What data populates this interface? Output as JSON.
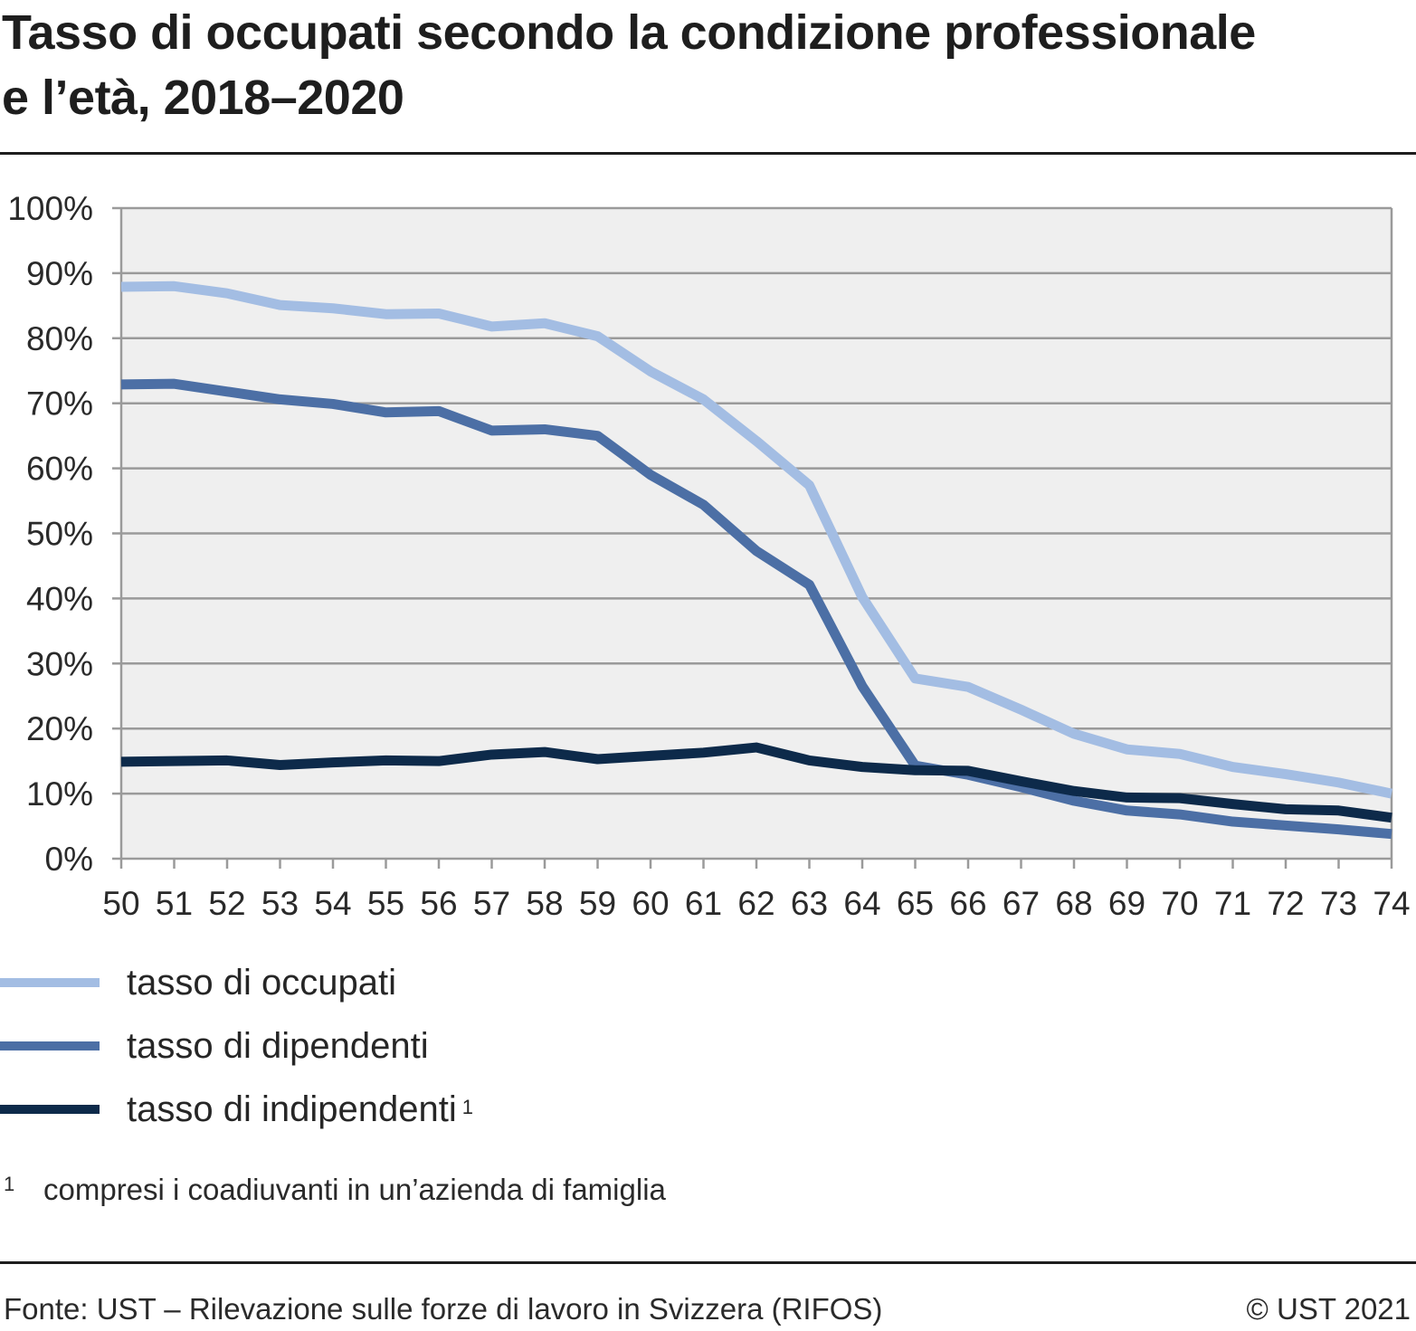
{
  "header": {
    "title_line1": "Tasso di occupati secondo la condizione professionale",
    "title_line2": "e l’età, 2018–2020"
  },
  "chart_data": {
    "type": "line",
    "title": "Tasso di occupati secondo la condizione professionale e l’età, 2018–2020",
    "xlabel": "",
    "ylabel": "",
    "categories": [
      "50",
      "51",
      "52",
      "53",
      "54",
      "55",
      "56",
      "57",
      "58",
      "59",
      "60",
      "61",
      "62",
      "63",
      "64",
      "65",
      "66",
      "67",
      "68",
      "69",
      "70",
      "71",
      "72",
      "73",
      "74"
    ],
    "y_ticks": [
      "0%",
      "10%",
      "20%",
      "30%",
      "40%",
      "50%",
      "60%",
      "70%",
      "80%",
      "90%",
      "100%"
    ],
    "ylim": [
      0,
      100
    ],
    "grid": true,
    "legend_position": "bottom",
    "series": [
      {
        "name": "tasso di occupati",
        "color": "#a3bde3",
        "values": [
          87.9,
          88.0,
          86.9,
          85.1,
          84.6,
          83.7,
          83.8,
          81.8,
          82.3,
          80.3,
          74.9,
          70.6,
          64.2,
          57.4,
          40.2,
          27.7,
          26.4,
          22.9,
          19.2,
          16.8,
          16.1,
          14.1,
          13.0,
          11.7,
          10.0
        ]
      },
      {
        "name": "tasso di dipendenti",
        "color": "#4c6fa5",
        "values": [
          72.9,
          73.0,
          71.8,
          70.6,
          69.9,
          68.6,
          68.8,
          65.8,
          66.0,
          65.0,
          59.0,
          54.4,
          47.3,
          42.1,
          26.5,
          14.3,
          12.9,
          11.0,
          8.9,
          7.4,
          6.8,
          5.7,
          5.1,
          4.5,
          3.8
        ]
      },
      {
        "name": "tasso di indipendenti",
        "color": "#0d2a4a",
        "values": [
          14.9,
          15.0,
          15.1,
          14.4,
          14.8,
          15.1,
          15.0,
          16.0,
          16.4,
          15.3,
          15.8,
          16.3,
          17.1,
          15.1,
          14.1,
          13.6,
          13.5,
          11.9,
          10.4,
          9.4,
          9.3,
          8.4,
          7.6,
          7.4,
          6.3
        ]
      }
    ]
  },
  "legend": [
    {
      "label": "tasso di occupati",
      "sup": "",
      "color": "#a3bde3"
    },
    {
      "label": "tasso di dipendenti",
      "sup": "",
      "color": "#4c6fa5"
    },
    {
      "label": "tasso di indipendenti",
      "sup": "1",
      "color": "#0d2a4a"
    }
  ],
  "footnote": {
    "mark": "1",
    "text": "compresi i coadiuvanti in un’azienda di famiglia"
  },
  "footer": {
    "source": "Fonte: UST – Rilevazione sulle forze di lavoro in Svizzera (RIFOS)",
    "copyright": "© UST 2021"
  }
}
